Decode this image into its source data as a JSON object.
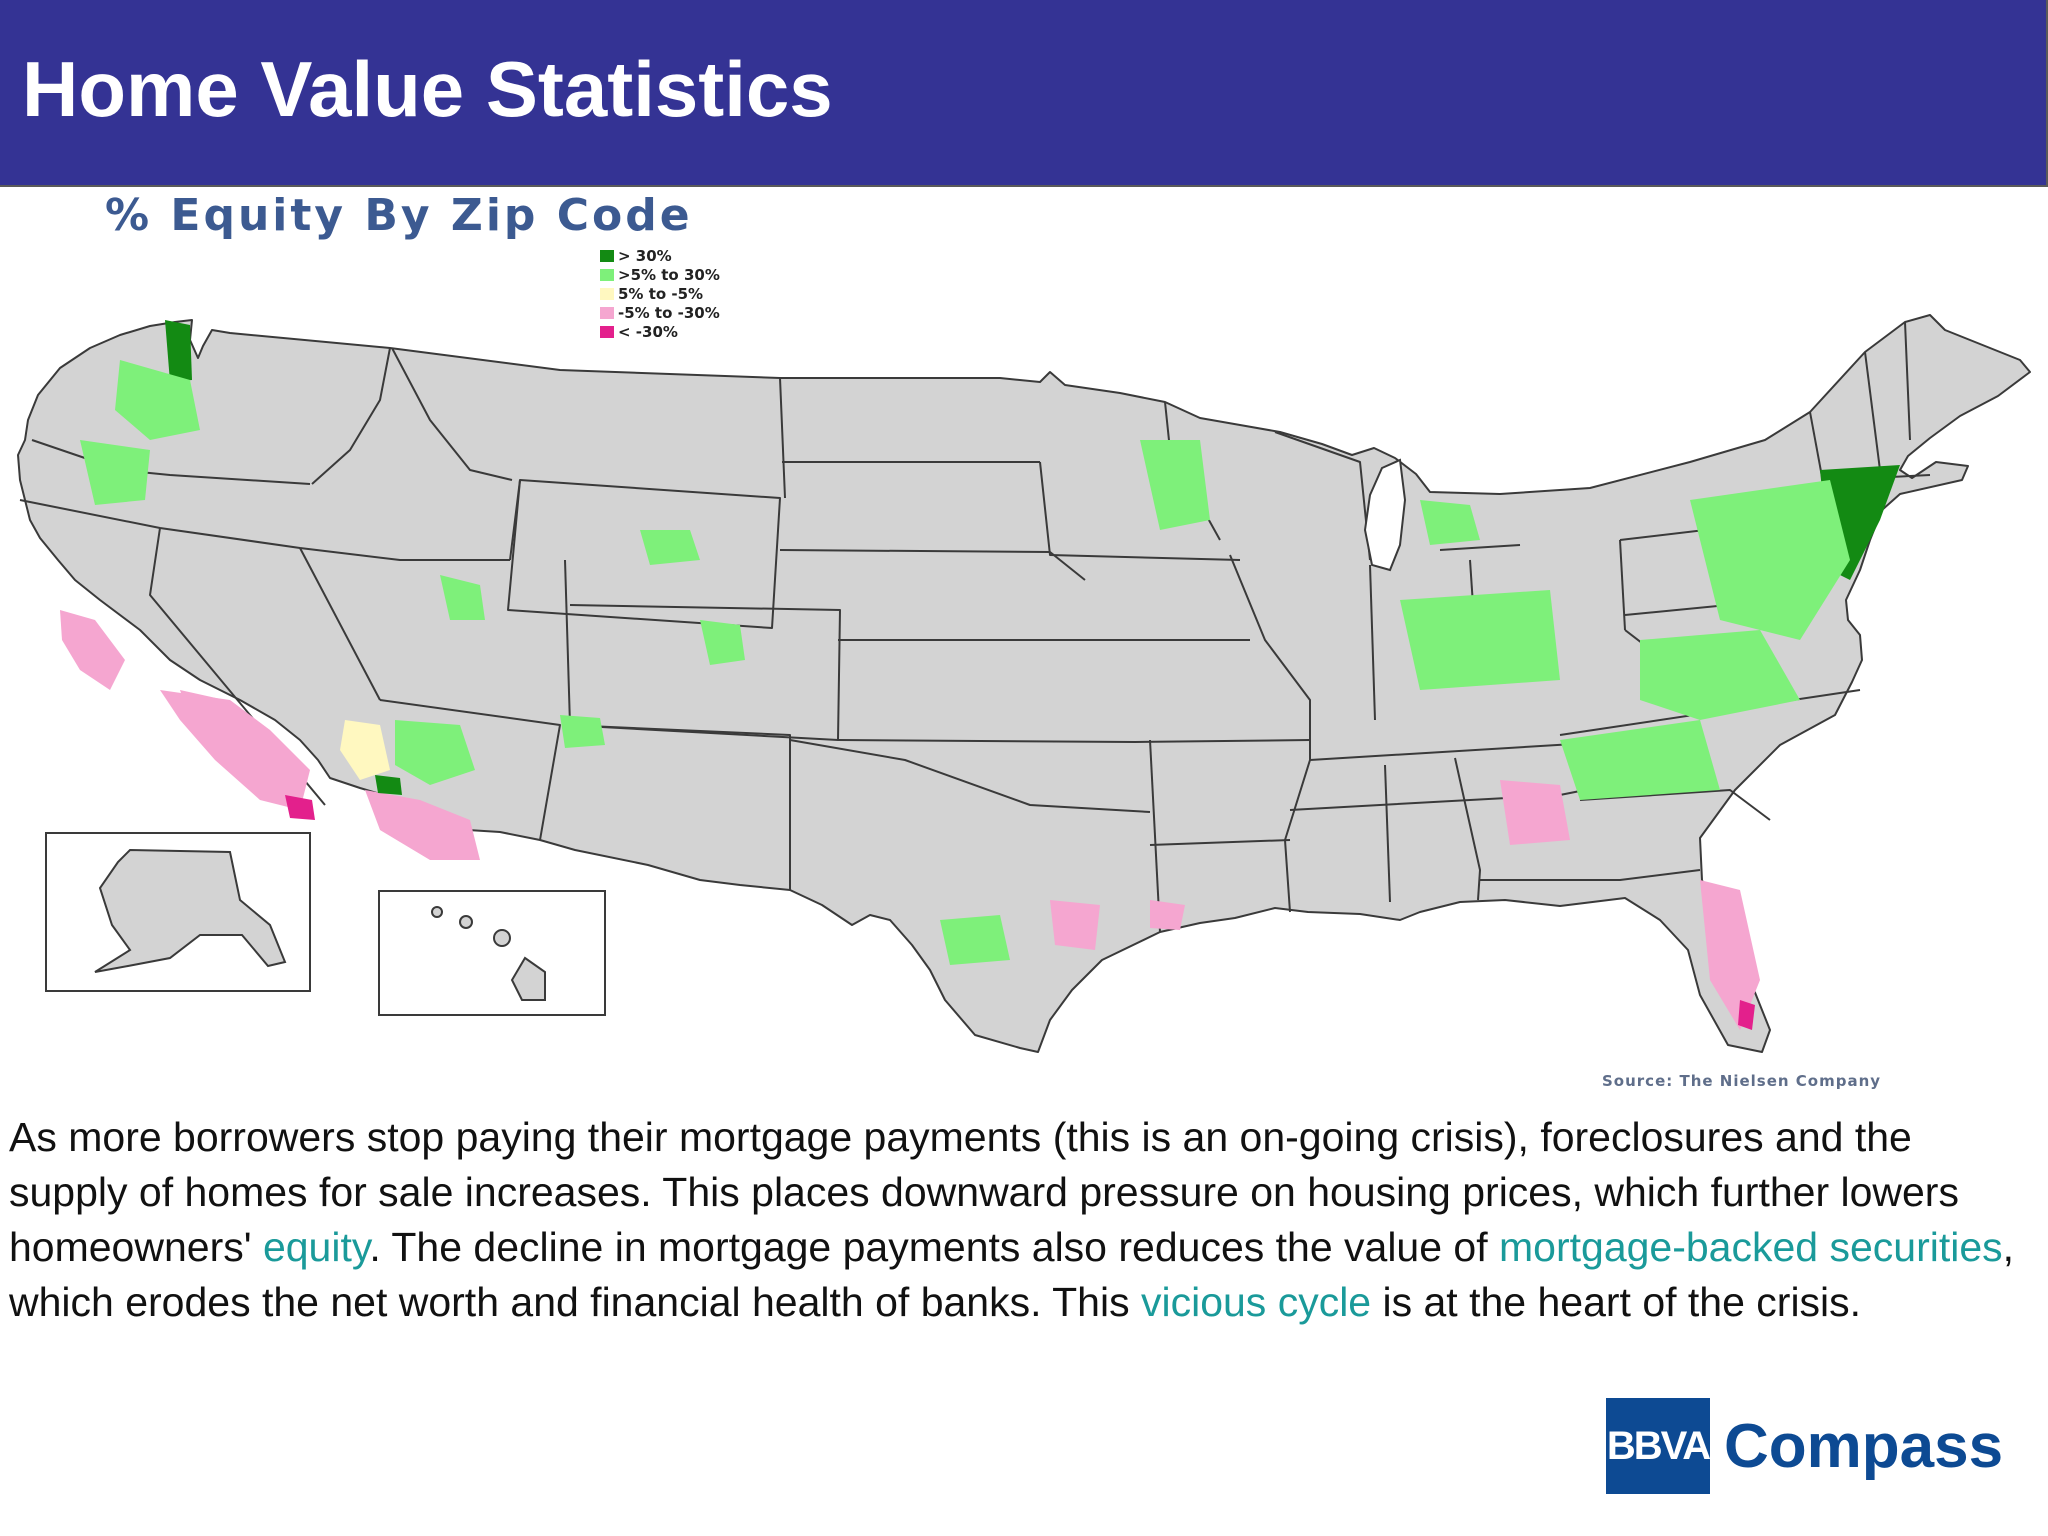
{
  "header": {
    "title": "Home Value Statistics"
  },
  "map": {
    "title": "% Equity By Zip Code",
    "legend": [
      {
        "label": "> 30%",
        "color": "#138a13"
      },
      {
        "label": ">5% to 30%",
        "color": "#7ef07a"
      },
      {
        "label": "5% to -5%",
        "color": "#fff8c0"
      },
      {
        "label": "-5% to -30%",
        "color": "#f5a6d0"
      },
      {
        "label": "< -30%",
        "color": "#e3208c"
      }
    ],
    "source": "Source: The Nielsen Company",
    "colors": {
      "land": "#d3d3d3",
      "border": "#3a3a3a",
      "water": "#ffffff"
    }
  },
  "body": {
    "p1": "As more borrowers stop paying their mortgage payments (this is an on-going crisis), foreclosures and the supply of homes for sale increases. This places downward pressure on housing prices, which further lowers homeowners' ",
    "link1": "equity",
    "p2": ". The decline in mortgage payments also reduces the value of ",
    "link2": "mortgage-backed securities",
    "p3": ", which erodes the net worth and financial health of banks. This ",
    "link3": "vicious cycle",
    "p4": " is at the heart of the crisis."
  },
  "logo": {
    "box": "BBVA",
    "word": "Compass"
  }
}
